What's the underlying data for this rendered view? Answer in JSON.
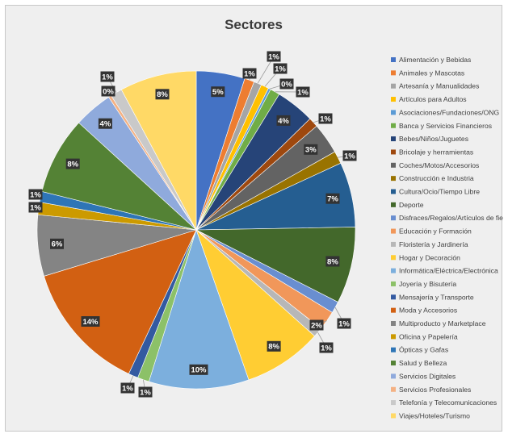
{
  "chart_data": {
    "type": "pie",
    "title": "Sectores",
    "legend_position": "right",
    "categories": [
      "Alimentación y Bebidas",
      "Animales y Mascotas",
      "Artesanía y Manualidades",
      "Artículos para Adultos",
      "Asociaciones/Fundaciones/ONG",
      "Banca y Servicios Financieros",
      "Bebes/Niños/Juguetes",
      "Bricolaje y herramientas",
      "Coches/Motos/Accesorios",
      "Construcción e Industria",
      "Cultura/Ocio/Tiempo Libre",
      "Deporte",
      "Disfraces/Regalos/Artículos de fiesta",
      "Educación y Formación",
      "Floristería y Jardinería",
      "Hogar y Decoración",
      "Informática/Eléctrica/Electrónica",
      "Joyería y Bisutería",
      "Mensajería y Transporte",
      "Moda y Accesorios",
      "Multiproducto y Marketplace",
      "Oficina y Papelería",
      "Ópticas y Gafas",
      "Salud y Belleza",
      "Servicios Digitales",
      "Servicios Profesionales",
      "Telefonía y Telecomunicaciones",
      "Viajes/Hoteles/Turismo"
    ],
    "values": [
      5,
      1,
      1,
      1,
      0,
      1,
      4,
      1,
      3,
      1,
      7,
      8,
      1,
      2,
      1,
      8,
      10,
      1,
      1,
      14,
      6,
      1,
      1,
      8,
      4,
      0,
      1,
      8
    ],
    "value_labels": [
      "5%",
      "1%",
      "1%",
      "1%",
      "0%",
      "1%",
      "4%",
      "1%",
      "3%",
      "1%",
      "7%",
      "8%",
      "1%",
      "2%",
      "1%",
      "8%",
      "10%",
      "1%",
      "1%",
      "14%",
      "6%",
      "1%",
      "1%",
      "8%",
      "4%",
      "0%",
      "1%",
      "8%"
    ],
    "slice_weights": [
      5.0,
      1.0,
      0.8,
      0.8,
      0.25,
      1.0,
      4.0,
      1.0,
      3.2,
      1.3,
      6.7,
      7.9,
      1.2,
      2.0,
      1.0,
      8.1,
      10.3,
      1.2,
      1.0,
      13.5,
      6.3,
      1.3,
      1.1,
      8.0,
      4.0,
      0.3,
      1.2,
      7.9
    ],
    "colors": [
      "#4472c4",
      "#ed7d31",
      "#a5a5a5",
      "#ffc000",
      "#5b9bd5",
      "#70ad47",
      "#264478",
      "#9e480e",
      "#636363",
      "#997300",
      "#255e91",
      "#43682b",
      "#698ed0",
      "#f1975a",
      "#b7b7b7",
      "#ffcd33",
      "#7cafdd",
      "#8cc168",
      "#335aa1",
      "#d26012",
      "#848484",
      "#cc9a00",
      "#2e75b6",
      "#548235",
      "#8faadc",
      "#f4b183",
      "#c9c9c9",
      "#ffd966"
    ]
  }
}
